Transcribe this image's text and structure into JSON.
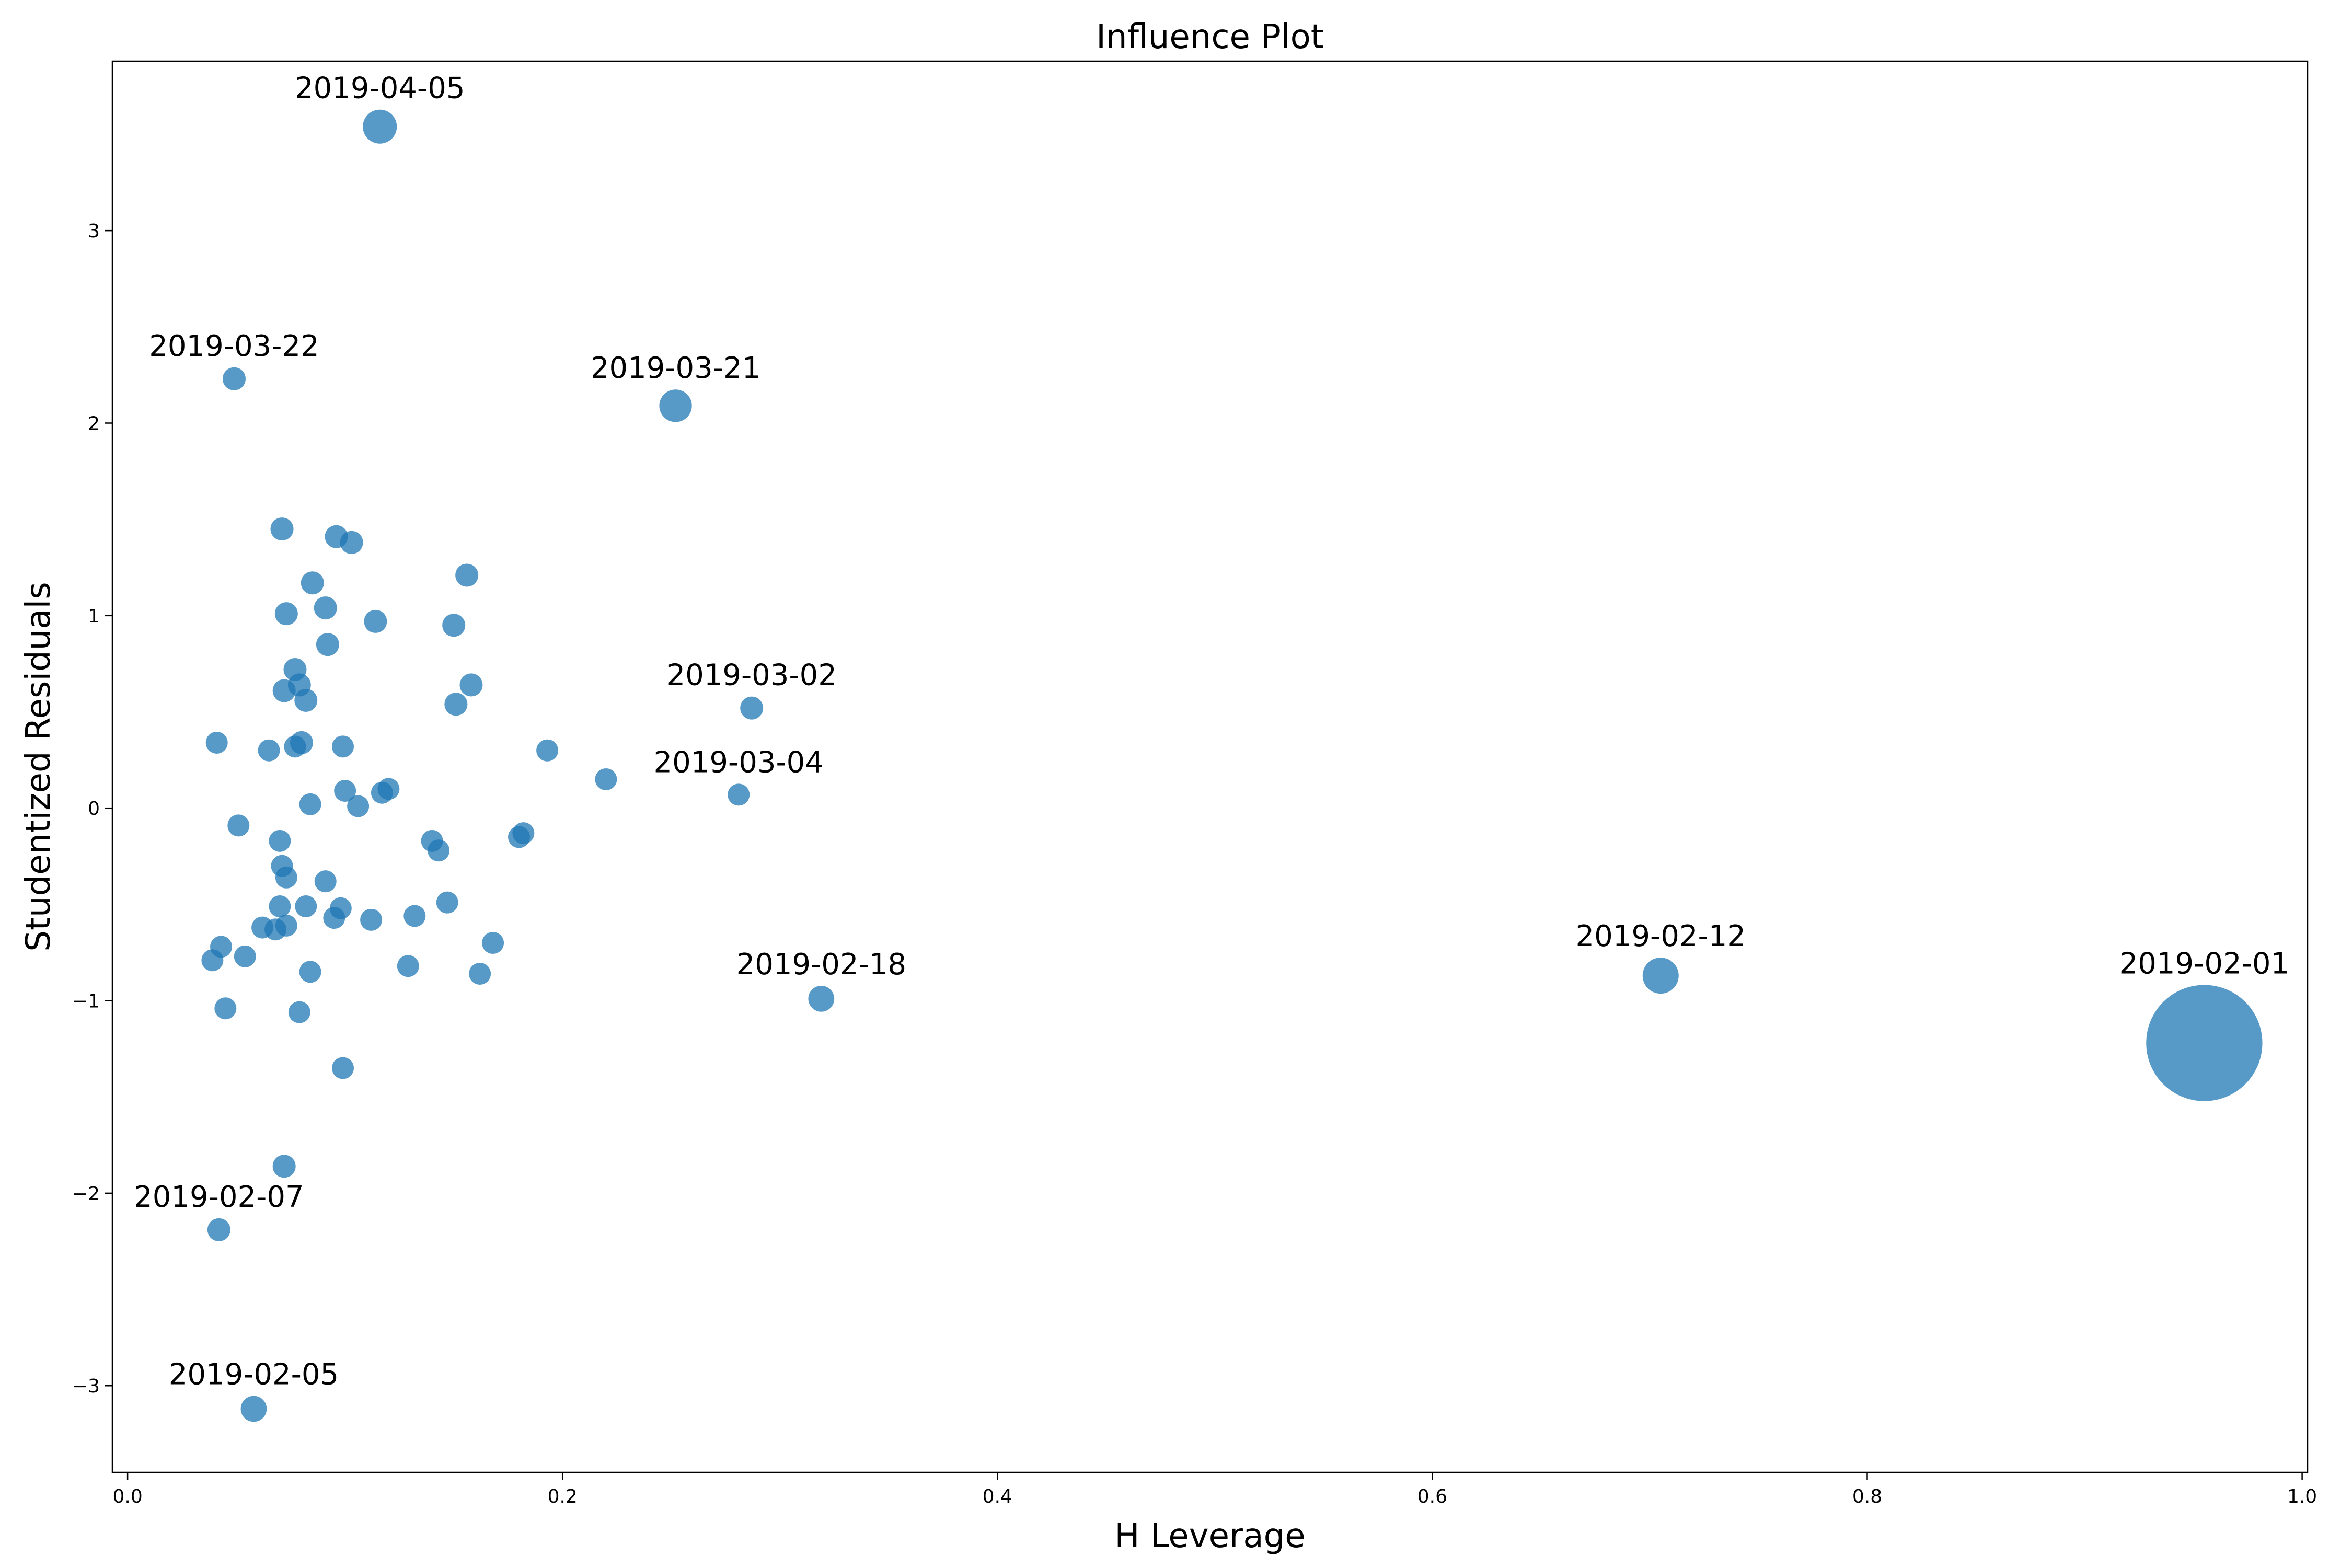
{
  "chart_data": {
    "type": "scatter",
    "title": "Influence Plot",
    "xlabel": "H Leverage",
    "ylabel": "Studentized Residuals",
    "xlim": [
      -0.007,
      1.0025
    ],
    "ylim": [
      -3.45,
      3.88
    ],
    "xticks": [
      0.0,
      0.2,
      0.4,
      0.6,
      0.8,
      1.0
    ],
    "xtick_labels": [
      "0.0",
      "0.2",
      "0.4",
      "0.6",
      "0.8",
      "1.0"
    ],
    "yticks": [
      -3,
      -2,
      -1,
      0,
      1,
      2,
      3
    ],
    "ytick_labels": [
      "−3",
      "−2",
      "−1",
      "0",
      "1",
      "2",
      "3"
    ],
    "grid": false,
    "color": "#1f77b4",
    "size_encodes": "influence (relative marker size)",
    "points": [
      {
        "x": 0.116,
        "y": 3.54,
        "size": 2.4,
        "label": "2019-04-05"
      },
      {
        "x": 0.049,
        "y": 2.23,
        "size": 1.1,
        "label": "2019-03-22"
      },
      {
        "x": 0.252,
        "y": 2.09,
        "size": 2.2,
        "label": "2019-03-21"
      },
      {
        "x": 0.287,
        "y": 0.52,
        "size": 1.1,
        "label": "2019-03-02"
      },
      {
        "x": 0.281,
        "y": 0.07,
        "size": 1.0,
        "label": "2019-03-04"
      },
      {
        "x": 0.319,
        "y": -0.99,
        "size": 1.4,
        "label": "2019-02-18"
      },
      {
        "x": 0.705,
        "y": -0.87,
        "size": 2.7,
        "label": "2019-02-12"
      },
      {
        "x": 0.955,
        "y": -1.22,
        "size": 28,
        "label": "2019-02-01"
      },
      {
        "x": 0.042,
        "y": -2.19,
        "size": 1.1,
        "label": "2019-02-07"
      },
      {
        "x": 0.058,
        "y": -3.12,
        "size": 1.4,
        "label": "2019-02-05"
      },
      {
        "x": 0.071,
        "y": 1.45,
        "size": 1.1
      },
      {
        "x": 0.096,
        "y": 1.41,
        "size": 1.1
      },
      {
        "x": 0.103,
        "y": 1.38,
        "size": 1.1
      },
      {
        "x": 0.156,
        "y": 1.21,
        "size": 1.1
      },
      {
        "x": 0.085,
        "y": 1.17,
        "size": 1.1
      },
      {
        "x": 0.091,
        "y": 1.04,
        "size": 1.1
      },
      {
        "x": 0.073,
        "y": 1.01,
        "size": 1.1
      },
      {
        "x": 0.114,
        "y": 0.97,
        "size": 1.1
      },
      {
        "x": 0.15,
        "y": 0.95,
        "size": 1.1
      },
      {
        "x": 0.092,
        "y": 0.85,
        "size": 1.1
      },
      {
        "x": 0.077,
        "y": 0.72,
        "size": 1.1
      },
      {
        "x": 0.079,
        "y": 0.64,
        "size": 1.1
      },
      {
        "x": 0.158,
        "y": 0.64,
        "size": 1.1
      },
      {
        "x": 0.072,
        "y": 0.61,
        "size": 1.1
      },
      {
        "x": 0.082,
        "y": 0.56,
        "size": 1.1
      },
      {
        "x": 0.151,
        "y": 0.54,
        "size": 1.1
      },
      {
        "x": 0.041,
        "y": 0.34,
        "size": 1.0
      },
      {
        "x": 0.08,
        "y": 0.34,
        "size": 1.1
      },
      {
        "x": 0.077,
        "y": 0.32,
        "size": 1.0
      },
      {
        "x": 0.099,
        "y": 0.32,
        "size": 1.0
      },
      {
        "x": 0.065,
        "y": 0.3,
        "size": 1.0
      },
      {
        "x": 0.193,
        "y": 0.3,
        "size": 1.0
      },
      {
        "x": 0.22,
        "y": 0.15,
        "size": 1.0
      },
      {
        "x": 0.12,
        "y": 0.1,
        "size": 1.0
      },
      {
        "x": 0.1,
        "y": 0.09,
        "size": 1.0
      },
      {
        "x": 0.117,
        "y": 0.08,
        "size": 1.0
      },
      {
        "x": 0.084,
        "y": 0.02,
        "size": 1.0
      },
      {
        "x": 0.106,
        "y": 0.01,
        "size": 1.0
      },
      {
        "x": 0.051,
        "y": -0.09,
        "size": 1.0
      },
      {
        "x": 0.182,
        "y": -0.13,
        "size": 1.0
      },
      {
        "x": 0.18,
        "y": -0.15,
        "size": 1.0
      },
      {
        "x": 0.07,
        "y": -0.17,
        "size": 1.0
      },
      {
        "x": 0.14,
        "y": -0.17,
        "size": 1.0
      },
      {
        "x": 0.143,
        "y": -0.22,
        "size": 1.0
      },
      {
        "x": 0.071,
        "y": -0.3,
        "size": 1.0
      },
      {
        "x": 0.073,
        "y": -0.36,
        "size": 1.0
      },
      {
        "x": 0.091,
        "y": -0.38,
        "size": 1.0
      },
      {
        "x": 0.147,
        "y": -0.49,
        "size": 1.0
      },
      {
        "x": 0.07,
        "y": -0.51,
        "size": 1.0
      },
      {
        "x": 0.082,
        "y": -0.51,
        "size": 1.0
      },
      {
        "x": 0.098,
        "y": -0.52,
        "size": 1.0
      },
      {
        "x": 0.095,
        "y": -0.57,
        "size": 1.0
      },
      {
        "x": 0.112,
        "y": -0.58,
        "size": 1.0
      },
      {
        "x": 0.132,
        "y": -0.56,
        "size": 1.0
      },
      {
        "x": 0.073,
        "y": -0.61,
        "size": 1.0
      },
      {
        "x": 0.062,
        "y": -0.62,
        "size": 1.0
      },
      {
        "x": 0.068,
        "y": -0.63,
        "size": 1.0
      },
      {
        "x": 0.043,
        "y": -0.72,
        "size": 1.0
      },
      {
        "x": 0.168,
        "y": -0.7,
        "size": 1.0
      },
      {
        "x": 0.039,
        "y": -0.79,
        "size": 1.0
      },
      {
        "x": 0.054,
        "y": -0.77,
        "size": 1.0
      },
      {
        "x": 0.129,
        "y": -0.82,
        "size": 1.0
      },
      {
        "x": 0.084,
        "y": -0.85,
        "size": 1.0
      },
      {
        "x": 0.162,
        "y": -0.86,
        "size": 1.0
      },
      {
        "x": 0.045,
        "y": -1.04,
        "size": 1.0
      },
      {
        "x": 0.079,
        "y": -1.06,
        "size": 1.0
      },
      {
        "x": 0.099,
        "y": -1.35,
        "size": 1.0
      },
      {
        "x": 0.072,
        "y": -1.86,
        "size": 1.1
      }
    ]
  }
}
